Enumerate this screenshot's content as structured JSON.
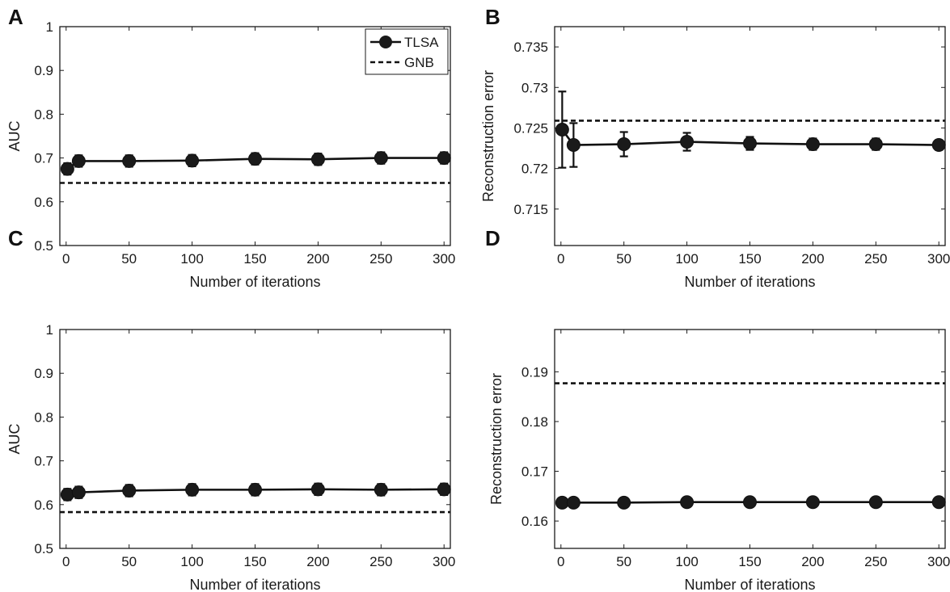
{
  "chart_data": [
    {
      "panel": "A",
      "type": "line",
      "xlabel": "Number of iterations",
      "ylabel": "AUC",
      "xlim": [
        -5,
        305
      ],
      "ylim": [
        0.5,
        1.0
      ],
      "xticks": [
        0,
        50,
        100,
        150,
        200,
        250,
        300
      ],
      "yticks": [
        0.5,
        0.6,
        0.7,
        0.8,
        0.9,
        1.0
      ],
      "yticklabels": [
        "0.5",
        "0.6",
        "0.7",
        "0.8",
        "0.9",
        "1"
      ],
      "legend": {
        "position": "top-right",
        "entries": [
          "TLSA",
          "GNB"
        ]
      },
      "series": [
        {
          "name": "TLSA",
          "style": "solid-marker",
          "x": [
            1,
            10,
            50,
            100,
            150,
            200,
            250,
            300
          ],
          "y": [
            0.675,
            0.693,
            0.693,
            0.694,
            0.698,
            0.697,
            0.7,
            0.7
          ],
          "err": [
            0.013,
            0.013,
            0.013,
            0.013,
            0.013,
            0.013,
            0.013,
            0.013
          ]
        },
        {
          "name": "GNB",
          "style": "dashed",
          "value": 0.643
        }
      ]
    },
    {
      "panel": "B",
      "type": "line",
      "xlabel": "Number of iterations",
      "ylabel": "Reconstruction error",
      "xlim": [
        -5,
        305
      ],
      "ylim": [
        0.7105,
        0.7375
      ],
      "xticks": [
        0,
        50,
        100,
        150,
        200,
        250,
        300
      ],
      "yticks": [
        0.715,
        0.72,
        0.725,
        0.73,
        0.735
      ],
      "yticklabels": [
        "0.715",
        "0.72",
        "0.725",
        "0.73",
        "0.735"
      ],
      "series": [
        {
          "name": "TLSA",
          "style": "solid-marker",
          "x": [
            1,
            10,
            50,
            100,
            150,
            200,
            250,
            300
          ],
          "y": [
            0.7248,
            0.7229,
            0.723,
            0.7233,
            0.7231,
            0.723,
            0.723,
            0.7229
          ],
          "err": [
            0.0047,
            0.0027,
            0.0015,
            0.0011,
            0.0008,
            0.0007,
            0.0007,
            0.0006
          ]
        },
        {
          "name": "GNB",
          "style": "dashed",
          "value": 0.7259
        }
      ]
    },
    {
      "panel": "C",
      "type": "line",
      "xlabel": "Number of iterations",
      "ylabel": "AUC",
      "xlim": [
        -5,
        305
      ],
      "ylim": [
        0.5,
        1.0
      ],
      "xticks": [
        0,
        50,
        100,
        150,
        200,
        250,
        300
      ],
      "yticks": [
        0.5,
        0.6,
        0.7,
        0.8,
        0.9,
        1.0
      ],
      "yticklabels": [
        "0.5",
        "0.6",
        "0.7",
        "0.8",
        "0.9",
        "1"
      ],
      "series": [
        {
          "name": "TLSA",
          "style": "solid-marker",
          "x": [
            1,
            10,
            50,
            100,
            150,
            200,
            250,
            300
          ],
          "y": [
            0.623,
            0.628,
            0.632,
            0.634,
            0.634,
            0.635,
            0.634,
            0.635
          ],
          "err": [
            0.013,
            0.013,
            0.013,
            0.013,
            0.013,
            0.013,
            0.013,
            0.013
          ]
        },
        {
          "name": "GNB",
          "style": "dashed",
          "value": 0.583
        }
      ]
    },
    {
      "panel": "D",
      "type": "line",
      "xlabel": "Number of iterations",
      "ylabel": "Reconstruction error",
      "xlim": [
        -5,
        305
      ],
      "ylim": [
        0.1545,
        0.1985
      ],
      "xticks": [
        0,
        50,
        100,
        150,
        200,
        250,
        300
      ],
      "yticks": [
        0.16,
        0.17,
        0.18,
        0.19
      ],
      "yticklabels": [
        "0.16",
        "0.17",
        "0.18",
        "0.19"
      ],
      "series": [
        {
          "name": "TLSA",
          "style": "solid-marker",
          "x": [
            1,
            10,
            50,
            100,
            150,
            200,
            250,
            300
          ],
          "y": [
            0.1637,
            0.1637,
            0.1637,
            0.1638,
            0.1638,
            0.1638,
            0.1638,
            0.1638
          ],
          "err": [
            0,
            0,
            0,
            0,
            0,
            0,
            0,
            0
          ]
        },
        {
          "name": "GNB",
          "style": "dashed",
          "value": 0.1877
        }
      ]
    }
  ]
}
